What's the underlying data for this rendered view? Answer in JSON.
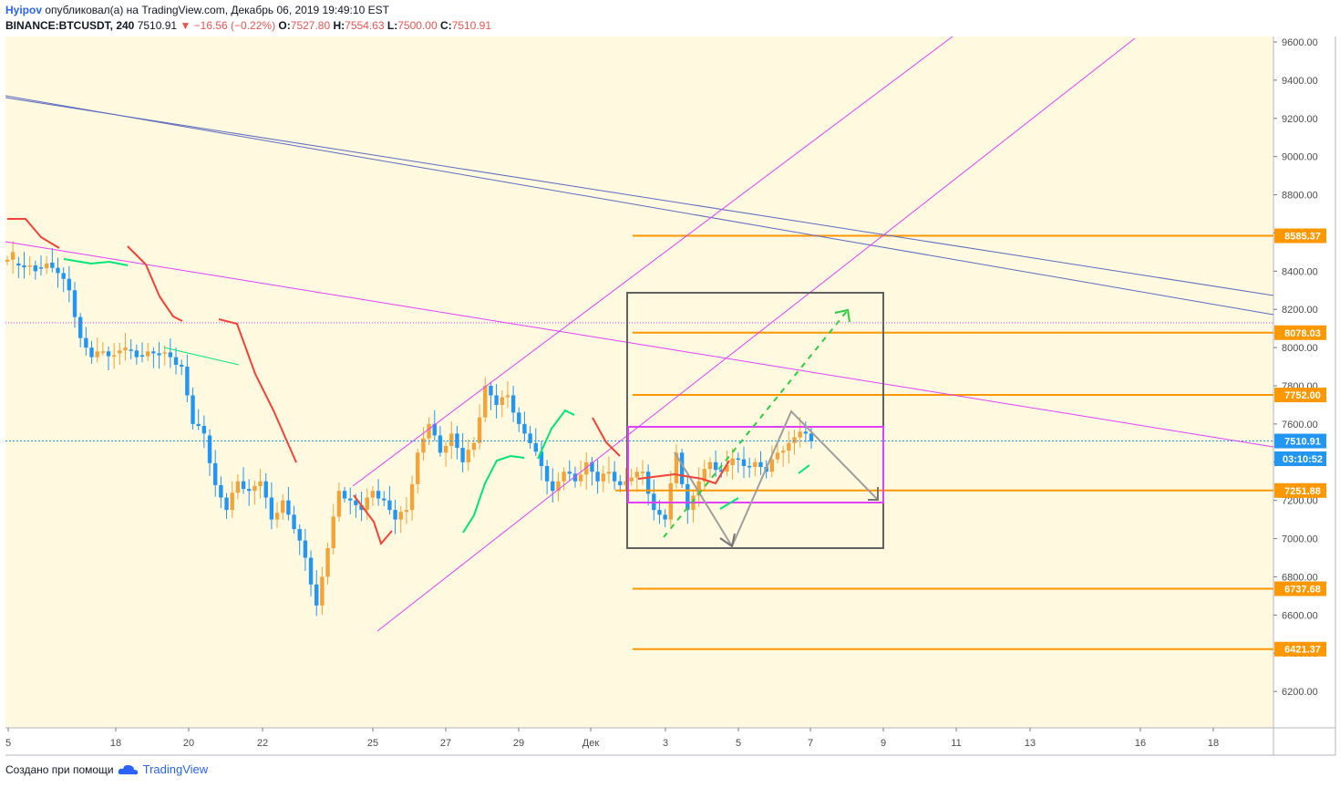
{
  "header": {
    "author": "Hyipov",
    "published": "опубликовал(а) на TradingView.com, Декабрь 06, 2019 19:49:10 EST",
    "symbol": "BINANCE:BTCUSDT, 240",
    "last": "7510.91",
    "change": "−16.56 (−0.22%)",
    "o_label": "O:",
    "o": "7527.80",
    "h_label": "H:",
    "h": "7554.63",
    "l_label": "L:",
    "l": "7500.00",
    "c_label": "C:",
    "c": "7510.91"
  },
  "footer": {
    "created": "Создано при помощи",
    "brand": "TradingView"
  },
  "colors": {
    "plot_bg": "#fff9e0",
    "bull": "#f2a33a",
    "bear": "#2196f3",
    "level": "#ff9800",
    "magenta": "#e040fb",
    "blue_channel": "#5c6bc0",
    "trail_red": "#f44336",
    "trail_green": "#00e676",
    "box_gray": "#616161"
  },
  "chart_data": {
    "type": "candlestick",
    "ylim": [
      6000,
      9650
    ],
    "y_ticks": [
      "6200.00",
      "6400.00",
      "6600.00",
      "6800.00",
      "7000.00",
      "7200.00",
      "7400.00",
      "7600.00",
      "7800.00",
      "8000.00",
      "8200.00",
      "8400.00",
      "8600.00",
      "8800.00",
      "9000.00",
      "9200.00",
      "9400.00",
      "9600.00"
    ],
    "x_ticks": [
      "5",
      "18",
      "20",
      "22",
      "25",
      "27",
      "29",
      "Дек",
      "3",
      "5",
      "7",
      "9",
      "11",
      "13",
      "16",
      "18"
    ],
    "price_labels": [
      {
        "text": "8585.37",
        "value": 8585.37,
        "type": "level"
      },
      {
        "text": "8078.03",
        "value": 8078.03,
        "type": "level"
      },
      {
        "text": "7752.00",
        "value": 7752.0,
        "type": "level"
      },
      {
        "text": "7510.91",
        "value": 7510.91,
        "type": "last"
      },
      {
        "text": "03:10:52",
        "value": 7430,
        "type": "countdown"
      },
      {
        "text": "7251.88",
        "value": 7251.88,
        "type": "level"
      },
      {
        "text": "6737.68",
        "value": 6737.68,
        "type": "level"
      },
      {
        "text": "6421.37",
        "value": 6421.37,
        "type": "level"
      }
    ],
    "price_path": [
      [
        8450,
        8500
      ],
      [
        8440,
        8420
      ],
      [
        8430,
        8400
      ],
      [
        8420,
        8440
      ],
      [
        8445,
        8390
      ],
      [
        8390,
        8300
      ],
      [
        8300,
        8050
      ],
      [
        8050,
        7950
      ],
      [
        7950,
        7980
      ],
      [
        7980,
        7960
      ],
      [
        7970,
        8000
      ],
      [
        7990,
        7950
      ],
      [
        7960,
        7980
      ],
      [
        7980,
        7960
      ],
      [
        7970,
        7950
      ],
      [
        7950,
        7900
      ],
      [
        7900,
        7600
      ],
      [
        7600,
        7550
      ],
      [
        7540,
        7280
      ],
      [
        7280,
        7150
      ],
      [
        7150,
        7300
      ],
      [
        7300,
        7250
      ],
      [
        7250,
        7300
      ],
      [
        7300,
        7100
      ],
      [
        7100,
        7200
      ],
      [
        7200,
        7050
      ],
      [
        7050,
        6900
      ],
      [
        6900,
        6650
      ],
      [
        6650,
        6950
      ],
      [
        6950,
        7250
      ],
      [
        7250,
        7200
      ],
      [
        7200,
        7150
      ],
      [
        7150,
        7250
      ],
      [
        7250,
        7200
      ],
      [
        7200,
        7100
      ],
      [
        7100,
        7150
      ],
      [
        7150,
        7450
      ],
      [
        7450,
        7600
      ],
      [
        7600,
        7450
      ],
      [
        7450,
        7550
      ],
      [
        7550,
        7400
      ],
      [
        7400,
        7500
      ],
      [
        7500,
        7800
      ],
      [
        7800,
        7700
      ],
      [
        7700,
        7750
      ],
      [
        7750,
        7600
      ],
      [
        7600,
        7500
      ],
      [
        7500,
        7380
      ],
      [
        7380,
        7250
      ],
      [
        7250,
        7350
      ],
      [
        7350,
        7300
      ],
      [
        7300,
        7400
      ],
      [
        7400,
        7300
      ],
      [
        7300,
        7350
      ],
      [
        7350,
        7280
      ],
      [
        7280,
        7320
      ],
      [
        7320,
        7350
      ],
      [
        7350,
        7150
      ],
      [
        7150,
        7100
      ],
      [
        7100,
        7450
      ],
      [
        7450,
        7150
      ],
      [
        7150,
        7300
      ],
      [
        7300,
        7400
      ],
      [
        7400,
        7350
      ],
      [
        7350,
        7420
      ],
      [
        7420,
        7380
      ],
      [
        7380,
        7400
      ],
      [
        7400,
        7350
      ],
      [
        7350,
        7450
      ],
      [
        7450,
        7500
      ],
      [
        7500,
        7560
      ],
      [
        7560,
        7510
      ]
    ]
  }
}
